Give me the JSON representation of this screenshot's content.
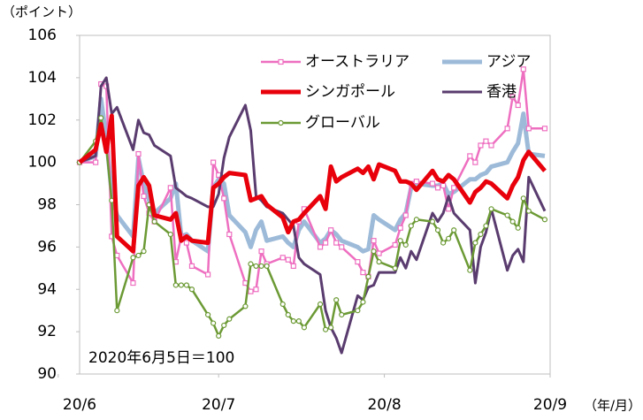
{
  "chart_data": {
    "type": "line",
    "y_label": "（ポイント）",
    "x_label": "（年/月）",
    "annotation": "2020年6月5日＝100",
    "x": [
      5,
      8,
      9,
      10,
      11,
      12,
      15,
      16,
      17,
      18,
      19,
      22,
      23,
      24,
      25,
      26,
      29,
      30,
      31,
      32,
      33,
      36,
      37,
      38,
      39,
      40,
      43,
      44,
      45,
      46,
      47,
      50,
      51,
      52,
      53,
      54,
      57,
      58,
      59,
      60,
      61,
      64,
      65,
      66,
      67,
      68,
      71,
      72,
      73,
      74,
      75,
      78,
      79,
      80,
      81,
      82,
      85,
      86,
      87,
      88,
      89,
      92
    ],
    "xlim": [
      5,
      93
    ],
    "xticks": [
      {
        "value": 1,
        "label": "20/6"
      },
      {
        "value": 31,
        "label": "20/7"
      },
      {
        "value": 62,
        "label": "20/8"
      },
      {
        "value": 93,
        "label": "20/9"
      }
    ],
    "ylim": [
      90,
      106
    ],
    "yticks": [
      90,
      92,
      94,
      96,
      98,
      100,
      102,
      104,
      106
    ],
    "grid": false,
    "series": [
      {
        "name": "オーストラリア",
        "color": "#ee6fc0",
        "marker": "square",
        "values": [
          100.0,
          100.0,
          103.7,
          103.6,
          96.5,
          95.6,
          94.3,
          100.4,
          98.4,
          97.6,
          97.2,
          98.8,
          95.3,
          96.5,
          96.2,
          95.1,
          94.7,
          100.0,
          99.4,
          98.3,
          96.6,
          94.3,
          93.9,
          94.0,
          95.8,
          95.2,
          95.5,
          95.4,
          95.1,
          97.2,
          97.8,
          96.0,
          96.2,
          96.8,
          96.2,
          96.0,
          95.3,
          94.8,
          94.6,
          96.3,
          95.7,
          96.1,
          96.9,
          97.5,
          99.0,
          99.1,
          99.0,
          98.8,
          98.9,
          97.8,
          98.8,
          100.3,
          100.0,
          100.8,
          101.0,
          100.8,
          101.6,
          103.1,
          102.7,
          104.4,
          101.6,
          101.6
        ]
      },
      {
        "name": "アジア",
        "color": "#9dbbd9",
        "marker": "none",
        "values": [
          100.0,
          100.3,
          103.0,
          101.2,
          98.5,
          97.5,
          96.5,
          100.2,
          99.0,
          98.2,
          97.6,
          98.3,
          99.0,
          96.5,
          96.6,
          96.3,
          95.8,
          98.8,
          99.2,
          99.0,
          97.5,
          96.7,
          96.0,
          96.8,
          97.2,
          96.3,
          96.5,
          96.2,
          96.0,
          96.8,
          97.2,
          96.2,
          96.4,
          96.8,
          96.6,
          96.3,
          96.0,
          95.8,
          95.9,
          97.5,
          97.3,
          96.8,
          97.3,
          97.6,
          98.8,
          99.0,
          98.9,
          98.9,
          99.0,
          98.5,
          98.6,
          99.2,
          99.2,
          99.4,
          99.5,
          99.8,
          100.0,
          100.5,
          100.9,
          102.3,
          100.4,
          100.3
        ]
      },
      {
        "name": "シンガポール",
        "color": "#e8000b",
        "marker": "none",
        "values": [
          100.0,
          100.6,
          101.8,
          100.5,
          102.2,
          96.5,
          95.8,
          98.9,
          99.3,
          98.9,
          97.5,
          97.3,
          97.6,
          96.3,
          96.5,
          96.3,
          96.2,
          98.8,
          99.0,
          99.3,
          99.5,
          99.4,
          98.2,
          98.3,
          98.4,
          98.0,
          97.4,
          96.7,
          97.2,
          97.3,
          97.6,
          98.4,
          97.8,
          99.8,
          99.1,
          99.3,
          99.7,
          99.5,
          99.8,
          99.2,
          99.9,
          99.6,
          99.1,
          99.1,
          99.0,
          98.7,
          99.6,
          99.2,
          99.1,
          99.4,
          99.2,
          98.1,
          98.6,
          98.8,
          99.1,
          99.0,
          98.3,
          98.9,
          99.3,
          100.1,
          100.5,
          99.6
        ]
      },
      {
        "name": "香港",
        "color": "#5a3c6f",
        "marker": "none",
        "values": [
          100.0,
          100.3,
          103.6,
          104.0,
          102.3,
          102.6,
          100.6,
          102.0,
          101.4,
          101.3,
          100.8,
          100.3,
          98.8,
          98.6,
          98.4,
          98.3,
          97.9,
          97.9,
          98.5,
          100.2,
          101.2,
          102.7,
          101.5,
          98.4,
          98.2,
          97.9,
          97.6,
          97.3,
          97.0,
          95.5,
          95.2,
          94.7,
          93.0,
          92.2,
          91.7,
          91.0,
          93.7,
          93.5,
          94.1,
          94.2,
          94.8,
          94.8,
          95.5,
          95.0,
          95.8,
          95.4,
          97.6,
          97.2,
          97.6,
          98.4,
          97.6,
          96.8,
          94.3,
          96.0,
          96.7,
          97.8,
          94.9,
          95.6,
          95.9,
          95.3,
          99.3,
          97.7
        ]
      },
      {
        "name": "グローバル",
        "color": "#6c9a35",
        "marker": "circle",
        "values": [
          100.0,
          101.0,
          102.1,
          100.7,
          98.2,
          93.0,
          95.5,
          95.6,
          95.8,
          98.0,
          97.2,
          96.6,
          94.2,
          94.2,
          94.2,
          94.0,
          92.8,
          92.4,
          91.8,
          92.3,
          92.6,
          93.2,
          95.2,
          95.1,
          95.1,
          95.1,
          93.3,
          92.8,
          92.5,
          92.5,
          92.2,
          93.3,
          92.1,
          92.2,
          93.5,
          92.8,
          93.0,
          93.4,
          94.6,
          95.8,
          95.3,
          95.0,
          96.3,
          96.1,
          97.0,
          97.3,
          97.2,
          96.8,
          96.2,
          96.4,
          96.8,
          94.9,
          96.2,
          96.6,
          97.0,
          97.8,
          97.5,
          97.2,
          96.9,
          98.3,
          97.7,
          97.3
        ]
      }
    ]
  }
}
